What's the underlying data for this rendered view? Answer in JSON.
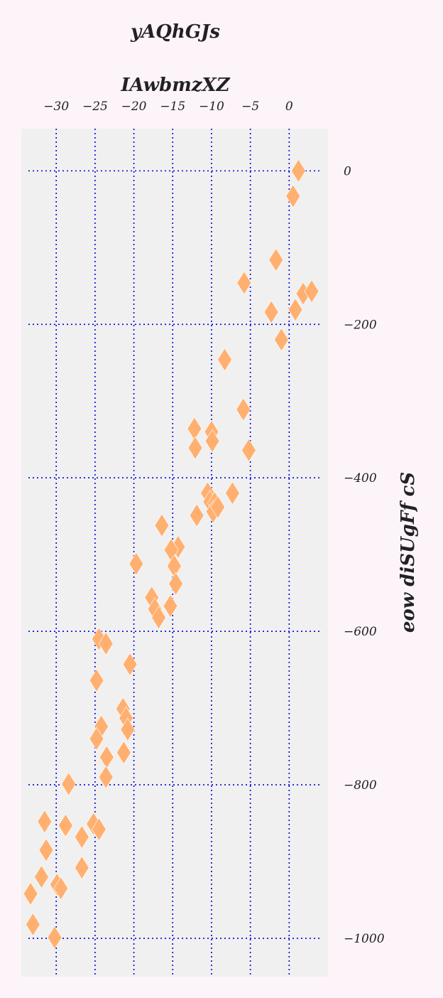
{
  "chart_data": {
    "type": "scatter",
    "title": "yAQhGJs",
    "xlabel": "IAwbmzXZ",
    "ylabel": "eow diSUgFf cS",
    "xlim": [
      -34.5,
      5
    ],
    "ylim": [
      -1050,
      55
    ],
    "x_axis_position": "top",
    "y_axis_position": "right",
    "x_ticks": [
      -30,
      -25,
      -20,
      -15,
      -10,
      -5,
      0
    ],
    "y_ticks": [
      0,
      -200,
      -400,
      -600,
      -800,
      -1000
    ],
    "x_tick_labels": [
      "−30",
      "−25",
      "−20",
      "−15",
      "−10",
      "−5",
      "0"
    ],
    "y_tick_labels": [
      "0",
      "−200",
      "−400",
      "−600",
      "−800",
      "−1000"
    ],
    "grid": true,
    "grid_style": "dotted",
    "grid_color": "#0000dd",
    "marker": "diamond",
    "marker_color": "#ffb070",
    "plot_background": "#f0f0f0",
    "points": [
      [
        1.2,
        0
      ],
      [
        0.5,
        -33
      ],
      [
        -1.7,
        -116
      ],
      [
        -5.8,
        -146
      ],
      [
        1.8,
        -160
      ],
      [
        2.9,
        -157
      ],
      [
        -2.3,
        -184
      ],
      [
        0.8,
        -181
      ],
      [
        -1.0,
        -220
      ],
      [
        -8.3,
        -246
      ],
      [
        -5.9,
        -311
      ],
      [
        -12.2,
        -336
      ],
      [
        -10.0,
        -340
      ],
      [
        -12.1,
        -361
      ],
      [
        -9.9,
        -352
      ],
      [
        -5.2,
        -364
      ],
      [
        -10.5,
        -420
      ],
      [
        -7.3,
        -420
      ],
      [
        -10.2,
        -431
      ],
      [
        -9.6,
        -433
      ],
      [
        -9.8,
        -444
      ],
      [
        -9.2,
        -438
      ],
      [
        -11.9,
        -449
      ],
      [
        -16.4,
        -462
      ],
      [
        -14.3,
        -490
      ],
      [
        -15.2,
        -494
      ],
      [
        -19.7,
        -512
      ],
      [
        -14.8,
        -515
      ],
      [
        -14.6,
        -538
      ],
      [
        -17.7,
        -556
      ],
      [
        -17.3,
        -571
      ],
      [
        -15.3,
        -567
      ],
      [
        -16.8,
        -582
      ],
      [
        -24.5,
        -610
      ],
      [
        -23.6,
        -616
      ],
      [
        -20.5,
        -643
      ],
      [
        -24.8,
        -664
      ],
      [
        -21.4,
        -701
      ],
      [
        -21.0,
        -713
      ],
      [
        -20.8,
        -728
      ],
      [
        -24.2,
        -724
      ],
      [
        -24.8,
        -740
      ],
      [
        -23.5,
        -764
      ],
      [
        -21.3,
        -758
      ],
      [
        -23.6,
        -790
      ],
      [
        -28.4,
        -799
      ],
      [
        -31.5,
        -848
      ],
      [
        -28.8,
        -853
      ],
      [
        -25.2,
        -851
      ],
      [
        -24.5,
        -858
      ],
      [
        -26.7,
        -868
      ],
      [
        -31.3,
        -885
      ],
      [
        -26.7,
        -908
      ],
      [
        -31.9,
        -920
      ],
      [
        -33.3,
        -942
      ],
      [
        -29.9,
        -930
      ],
      [
        -29.4,
        -935
      ],
      [
        -33.0,
        -982
      ],
      [
        -30.2,
        -999
      ]
    ]
  }
}
